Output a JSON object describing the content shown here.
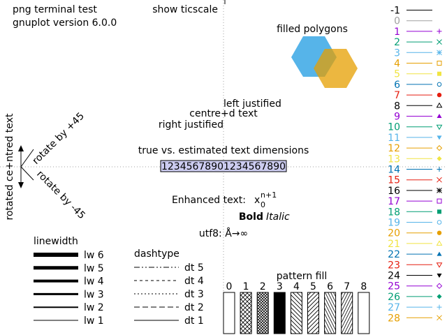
{
  "header": {
    "terminal": "png  terminal test",
    "version": "gnuplot version 6.0.0",
    "show_ticscale": "show ticscale"
  },
  "polygons": {
    "label": "filled polygons",
    "colors": [
      "#56b4e9",
      "#e69f00"
    ]
  },
  "justify": {
    "left": "left justified",
    "centre": "centre+d text",
    "right": "right justified"
  },
  "text_dimensions": {
    "label": "true vs. estimated text dimensions",
    "sample": "12345678901234567890"
  },
  "rotation": {
    "centred": "rotated ce+ntred text",
    "plus45": "rotate by +45",
    "minus45": "rotate by -45"
  },
  "enhanced": {
    "label": "Enhanced text:",
    "base": "x",
    "subscript": "0",
    "superscript": "n+1",
    "bold": "Bold",
    "italic": "Italic"
  },
  "utf8": {
    "label": "utf8: Å→∞"
  },
  "linewidth": {
    "title": "linewidth",
    "items": [
      {
        "label": "lw 6",
        "width": 6
      },
      {
        "label": "lw 5",
        "width": 5
      },
      {
        "label": "lw 4",
        "width": 4
      },
      {
        "label": "lw 3",
        "width": 3
      },
      {
        "label": "lw 2",
        "width": 2
      },
      {
        "label": "lw 1",
        "width": 1
      }
    ]
  },
  "dashtype": {
    "title": "dashtype",
    "items": [
      "dt 5",
      "dt 4",
      "dt 3",
      "dt 2",
      "dt 1"
    ]
  },
  "pattern": {
    "title": "pattern fill",
    "items": [
      "0",
      "1",
      "2",
      "3",
      "4",
      "5",
      "6",
      "7",
      "8"
    ]
  },
  "linetypes": [
    {
      "label": "-1",
      "color": "#000000",
      "symbol": "none"
    },
    {
      "label": "0",
      "color": "#a0a0a0",
      "symbol": "none"
    },
    {
      "label": "1",
      "color": "#9400d3",
      "symbol": "plus"
    },
    {
      "label": "2",
      "color": "#009e73",
      "symbol": "cross"
    },
    {
      "label": "3",
      "color": "#56b4e9",
      "symbol": "star"
    },
    {
      "label": "4",
      "color": "#e69f00",
      "symbol": "box"
    },
    {
      "label": "5",
      "color": "#f0e442",
      "symbol": "fbox"
    },
    {
      "label": "6",
      "color": "#0072b2",
      "symbol": "circle"
    },
    {
      "label": "7",
      "color": "#e51e10",
      "symbol": "fcircle"
    },
    {
      "label": "8",
      "color": "#000000",
      "symbol": "triangle"
    },
    {
      "label": "9",
      "color": "#9400d3",
      "symbol": "ftriangle"
    },
    {
      "label": "10",
      "color": "#009e73",
      "symbol": "itriangle"
    },
    {
      "label": "11",
      "color": "#56b4e9",
      "symbol": "fitriangle"
    },
    {
      "label": "12",
      "color": "#e69f00",
      "symbol": "diamond"
    },
    {
      "label": "13",
      "color": "#f0e442",
      "symbol": "fdiamond"
    },
    {
      "label": "14",
      "color": "#0072b2",
      "symbol": "plus"
    },
    {
      "label": "15",
      "color": "#e51e10",
      "symbol": "cross"
    },
    {
      "label": "16",
      "color": "#000000",
      "symbol": "star"
    },
    {
      "label": "17",
      "color": "#9400d3",
      "symbol": "box"
    },
    {
      "label": "18",
      "color": "#009e73",
      "symbol": "fbox"
    },
    {
      "label": "19",
      "color": "#56b4e9",
      "symbol": "circle"
    },
    {
      "label": "20",
      "color": "#e69f00",
      "symbol": "fcircle"
    },
    {
      "label": "21",
      "color": "#f0e442",
      "symbol": "triangle"
    },
    {
      "label": "22",
      "color": "#0072b2",
      "symbol": "ftriangle"
    },
    {
      "label": "23",
      "color": "#e51e10",
      "symbol": "itriangle"
    },
    {
      "label": "24",
      "color": "#000000",
      "symbol": "fitriangle"
    },
    {
      "label": "25",
      "color": "#9400d3",
      "symbol": "diamond"
    },
    {
      "label": "26",
      "color": "#009e73",
      "symbol": "fdiamond"
    },
    {
      "label": "27",
      "color": "#56b4e9",
      "symbol": "plus"
    },
    {
      "label": "28",
      "color": "#e69f00",
      "symbol": "cross"
    }
  ]
}
